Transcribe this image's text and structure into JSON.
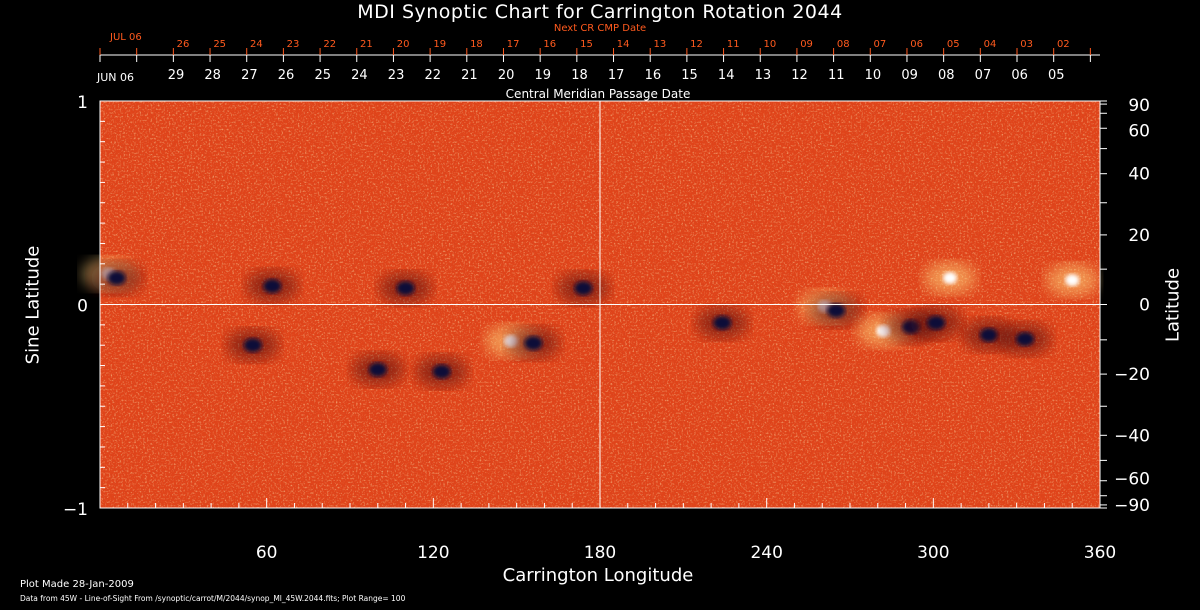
{
  "colors": {
    "background": "#000000",
    "axis": "#ffffff",
    "next_cmp": "#ff5a1e",
    "map_base": "#e0441a",
    "positive_polarity": "#ffffff",
    "negative_polarity": "#0a0a38"
  },
  "chart_data": {
    "type": "heatmap",
    "title": "MDI Synoptic Chart for Carrington Rotation 2044",
    "xlabel": "Carrington Longitude",
    "ylabel_left": "Sine Latitude",
    "ylabel_right": "Latitude",
    "xlim": [
      0,
      360
    ],
    "ylim": [
      -1,
      1
    ],
    "x_ticks": [
      60,
      120,
      180,
      240,
      300,
      360
    ],
    "y_ticks_left": [
      {
        "v": 1,
        "label": "1"
      },
      {
        "v": 0,
        "label": "0"
      },
      {
        "v": -1,
        "label": "−1"
      }
    ],
    "y_ticks_right": [
      90,
      60,
      40,
      20,
      0,
      -20,
      -40,
      -60,
      -90
    ],
    "y_ticks_right_labels": [
      "90",
      "60",
      "40",
      "20",
      "0",
      "−20",
      "−40",
      "−60",
      "−90"
    ],
    "grid": "lines at longitude 180 and sine latitude 0",
    "top_axis_cmp": {
      "label": "Central Meridian Passage Date",
      "month_label": "JUN 06",
      "dates": [
        "29",
        "28",
        "27",
        "26",
        "25",
        "24",
        "23",
        "22",
        "21",
        "20",
        "19",
        "18",
        "17",
        "16",
        "15",
        "14",
        "13",
        "12",
        "11",
        "10",
        "09",
        "08",
        "07",
        "06",
        "05"
      ]
    },
    "top_axis_next": {
      "label": "Next CR CMP Date",
      "month_label": "JUL 06",
      "dates": [
        "26",
        "25",
        "24",
        "23",
        "22",
        "21",
        "20",
        "19",
        "18",
        "17",
        "16",
        "15",
        "14",
        "13",
        "12",
        "11",
        "10",
        "09",
        "08",
        "07",
        "06",
        "05",
        "04",
        "03",
        "02"
      ]
    },
    "active_regions": [
      {
        "lon": 3,
        "sinlat": 0.15,
        "polarity": "positive"
      },
      {
        "lon": 6,
        "sinlat": 0.13,
        "polarity": "negative"
      },
      {
        "lon": 62,
        "sinlat": 0.09,
        "polarity": "negative"
      },
      {
        "lon": 110,
        "sinlat": 0.08,
        "polarity": "negative"
      },
      {
        "lon": 55,
        "sinlat": -0.2,
        "polarity": "negative"
      },
      {
        "lon": 100,
        "sinlat": -0.32,
        "polarity": "negative"
      },
      {
        "lon": 123,
        "sinlat": -0.33,
        "polarity": "negative"
      },
      {
        "lon": 148,
        "sinlat": -0.18,
        "polarity": "positive"
      },
      {
        "lon": 156,
        "sinlat": -0.19,
        "polarity": "negative"
      },
      {
        "lon": 174,
        "sinlat": 0.08,
        "polarity": "negative"
      },
      {
        "lon": 224,
        "sinlat": -0.09,
        "polarity": "negative"
      },
      {
        "lon": 261,
        "sinlat": -0.01,
        "polarity": "positive"
      },
      {
        "lon": 265,
        "sinlat": -0.03,
        "polarity": "negative"
      },
      {
        "lon": 282,
        "sinlat": -0.13,
        "polarity": "positive"
      },
      {
        "lon": 292,
        "sinlat": -0.11,
        "polarity": "negative"
      },
      {
        "lon": 301,
        "sinlat": -0.09,
        "polarity": "negative"
      },
      {
        "lon": 320,
        "sinlat": -0.15,
        "polarity": "negative"
      },
      {
        "lon": 333,
        "sinlat": -0.17,
        "polarity": "negative"
      },
      {
        "lon": 306,
        "sinlat": 0.13,
        "polarity": "positive"
      },
      {
        "lon": 350,
        "sinlat": 0.12,
        "polarity": "positive"
      }
    ]
  },
  "footer": {
    "made": "Plot Made 28-Jan-2009",
    "source": "Data from 45W - Line-of-Sight From /synoptic/carrot/M/2044/synop_Ml_45W.2044.fits; Plot Range= 100"
  }
}
